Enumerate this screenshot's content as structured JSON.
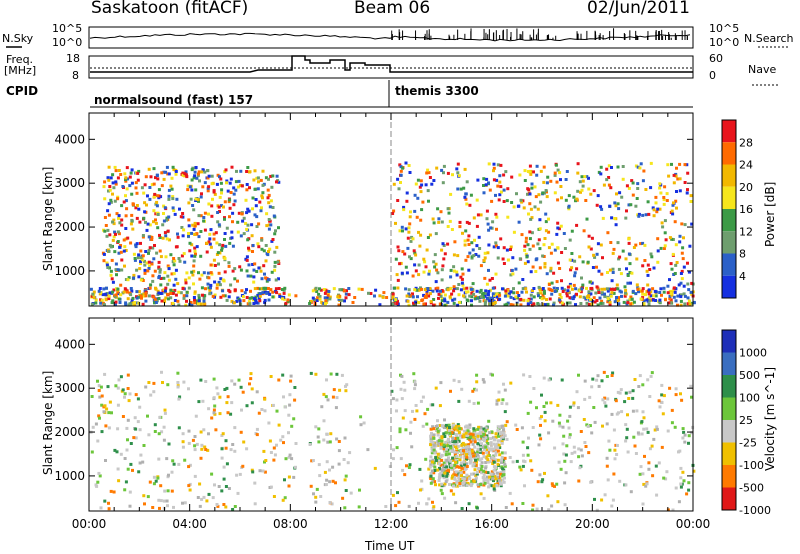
{
  "header": {
    "station": "Saskatoon (fitACF)",
    "beam": "Beam 06",
    "date": "02/Jun/2011"
  },
  "top_panels": {
    "nsky_label": "N.Sky",
    "nsky_ticks": [
      "10^5",
      "10^0"
    ],
    "nsearch_label": "N.Search",
    "nsearch_ticks": [
      "10^5",
      "10^0"
    ],
    "freq_label_1": "Freq.",
    "freq_label_2": "[MHz]",
    "freq_ticks": [
      "18",
      "8"
    ],
    "nave_label": "Nave",
    "nave_ticks": [
      "60",
      "0"
    ],
    "cpid_label": "CPID",
    "cpid_segments": [
      {
        "name": "normalsound (fast) 157",
        "start_hour": 0,
        "end_hour": 12
      },
      {
        "name": "themis 3300",
        "start_hour": 12,
        "end_hour": 24
      }
    ]
  },
  "chart_data": [
    {
      "type": "heatmap",
      "title": "",
      "xlabel": "",
      "ylabel": "Slant Range [km]",
      "xlim": [
        0,
        24
      ],
      "ylim": [
        200,
        4600
      ],
      "y_ticks": [
        "1000",
        "2000",
        "3000",
        "4000"
      ],
      "colorbar_label": "Power [dB]",
      "colorbar_ticks": [
        "28",
        "24",
        "20",
        "16",
        "12",
        "8",
        "4"
      ],
      "colorbar_colors": [
        "#e8141c",
        "#ff6a00",
        "#f2b800",
        "#f6e61c",
        "#3c9a46",
        "#6e9e6e",
        "#2b60c8",
        "#1530e0"
      ],
      "scatter_regions": [
        {
          "name": "ground-scatter-band",
          "start_hour": 0,
          "end_hour": 24,
          "range_min_km": 250,
          "range_max_km": 650
        },
        {
          "name": "early-ionospheric-arc",
          "start_hour": 0.5,
          "end_hour": 7.5,
          "range_min_km": 700,
          "range_max_km": 3400
        },
        {
          "name": "post-noon-arcs",
          "start_hour": 12,
          "end_hour": 24,
          "range_min_km": 600,
          "range_max_km": 3500
        }
      ]
    },
    {
      "type": "heatmap",
      "title": "",
      "xlabel": "Time UT",
      "ylabel": "Slant Range [km]",
      "xlim": [
        0,
        24
      ],
      "ylim": [
        200,
        4600
      ],
      "x_ticks": [
        "00:00",
        "04:00",
        "08:00",
        "12:00",
        "16:00",
        "20:00",
        "00:00"
      ],
      "y_ticks": [
        "1000",
        "2000",
        "3000",
        "4000"
      ],
      "colorbar_label": "Velocity [m s^-1]",
      "colorbar_ticks": [
        "1000",
        "500",
        "100",
        "25",
        "-25",
        "-100",
        "-500",
        "-1000"
      ],
      "colorbar_colors": [
        "#1e2fb8",
        "#3a6ec0",
        "#2e8f4a",
        "#6cc63a",
        "#c8c8c8",
        "#f0c000",
        "#ff7a00",
        "#e01818"
      ],
      "scatter_regions": [
        {
          "name": "ground-scatter-grey",
          "start_hour": 0,
          "end_hour": 24,
          "range_min_km": 250,
          "range_max_km": 3400
        },
        {
          "name": "flow-orange",
          "start_hour": 13.5,
          "end_hour": 16.5,
          "range_min_km": 800,
          "range_max_km": 2200
        }
      ]
    }
  ]
}
